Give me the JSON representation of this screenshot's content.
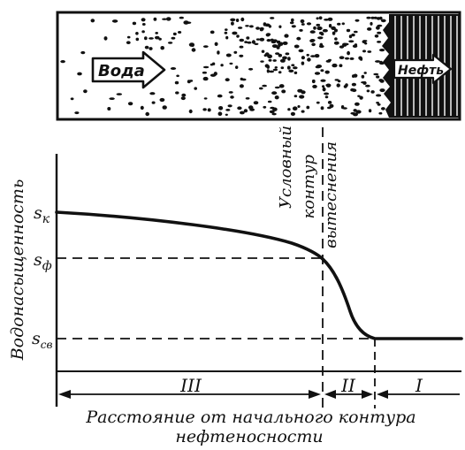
{
  "core": {
    "water_label": "Вода",
    "oil_label": "Нефть"
  },
  "axes": {
    "ylabel": "Водонасыщенность",
    "xlabel_line1": "Расстояние от начального контура",
    "xlabel_line2": "нефтеносности"
  },
  "levels": {
    "sk": "s",
    "sk_sub": "к",
    "sf": "s",
    "sf_sub": "ф",
    "ssv": "s",
    "ssv_sub": "св"
  },
  "front_label": {
    "line1": "Условный",
    "line2": "контур",
    "line3": "вытеснения"
  },
  "zones": {
    "z3": "III",
    "z2": "II",
    "z1": "I"
  },
  "colors": {
    "ink": "#111111",
    "paper": "#ffffff"
  }
}
